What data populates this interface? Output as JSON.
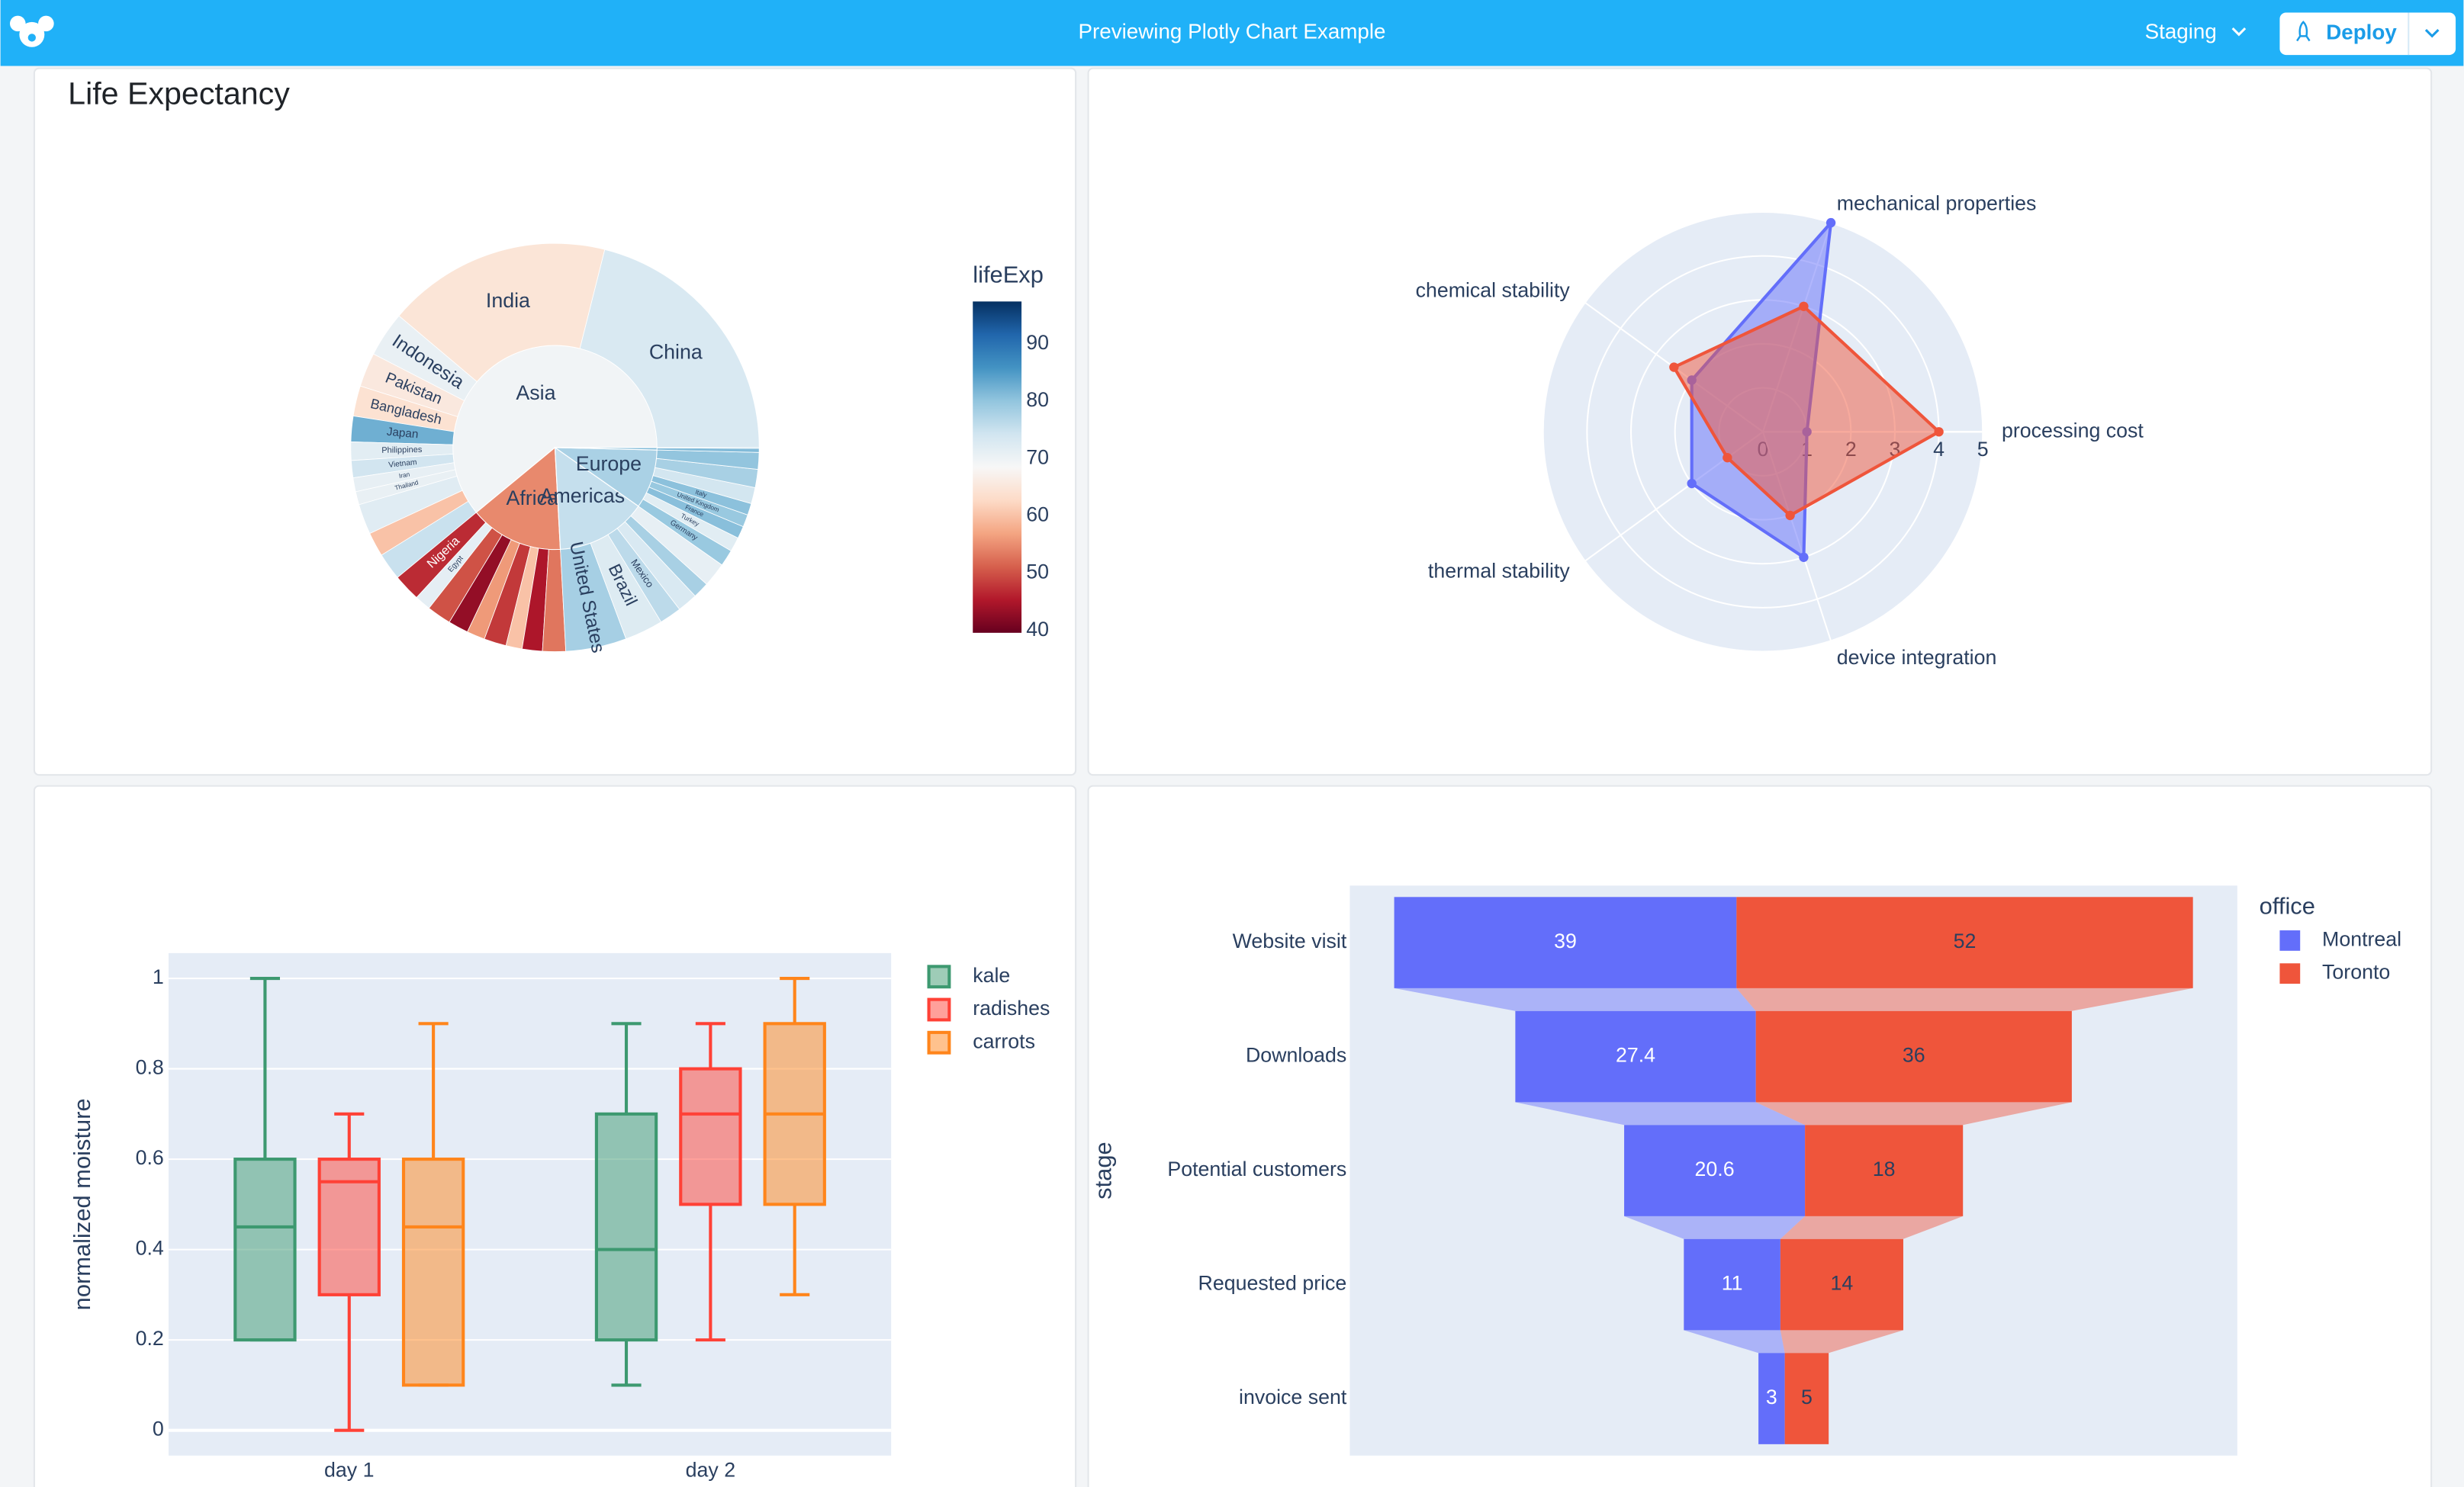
{
  "header": {
    "title": "Previewing Plotly Chart Example",
    "environment": "Staging",
    "action": "Deploy"
  },
  "chart_data": [
    {
      "type": "sunburst",
      "title": "Life Expectancy",
      "colorbar_title": "lifeExp",
      "clim": [
        39.6,
        97.4
      ],
      "cticks": [
        40,
        50,
        60,
        70,
        80,
        90
      ],
      "colorscale": [
        "#67001f",
        "#b2182b",
        "#d6604d",
        "#f4a582",
        "#fddbc7",
        "#f7f7f7",
        "#d1e5f0",
        "#92c5de",
        "#4393c3",
        "#2166ac",
        "#053061"
      ],
      "groups": [
        {
          "label": "Asia",
          "color_value": 69.4,
          "children": [
            {
              "label": "China",
              "value": 1318,
              "color_value": 73
            },
            {
              "label": "India",
              "value": 1110,
              "color_value": 64.7
            },
            {
              "label": "Indonesia",
              "value": 224,
              "color_value": 70.7
            },
            {
              "label": "Pakistan",
              "value": 169,
              "color_value": 65.5
            },
            {
              "label": "Bangladesh",
              "value": 150,
              "color_value": 64.1
            },
            {
              "label": "Japan",
              "value": 127,
              "color_value": 82.6
            },
            {
              "label": "Philippines",
              "value": 91,
              "color_value": 71.7
            },
            {
              "label": "Vietnam",
              "value": 85,
              "color_value": 74.2
            },
            {
              "label": "Iran",
              "value": 69,
              "color_value": 71
            },
            {
              "label": "Thailand",
              "value": 65,
              "color_value": 70.6
            },
            {
              "label": null,
              "value": 150,
              "color_value": 72
            },
            {
              "label": null,
              "value": 120,
              "color_value": 60
            },
            {
              "label": null,
              "value": 134,
              "color_value": 75
            }
          ]
        },
        {
          "label": "Africa",
          "color_value": 54.6,
          "children": [
            {
              "label": "Nigeria",
              "value": 135,
              "color_value": 46.9
            },
            {
              "label": "Egypt",
              "value": 80,
              "color_value": 71.3
            },
            {
              "label": null,
              "value": 120,
              "color_value": 50
            },
            {
              "label": null,
              "value": 100,
              "color_value": 43
            },
            {
              "label": null,
              "value": 90,
              "color_value": 56
            },
            {
              "label": null,
              "value": 110,
              "color_value": 48
            },
            {
              "label": null,
              "value": 80,
              "color_value": 60
            },
            {
              "label": null,
              "value": 100,
              "color_value": 45
            },
            {
              "label": null,
              "value": 114,
              "color_value": 53
            }
          ]
        },
        {
          "label": "Americas",
          "color_value": 75.4,
          "children": [
            {
              "label": "United States",
              "value": 301,
              "color_value": 78.2
            },
            {
              "label": "Brazil",
              "value": 190,
              "color_value": 72.4
            },
            {
              "label": "Mexico",
              "value": 109,
              "color_value": 76.2
            },
            {
              "label": null,
              "value": 100,
              "color_value": 73
            },
            {
              "label": null,
              "value": 80,
              "color_value": 78
            },
            {
              "label": null,
              "value": 120,
              "color_value": 71
            }
          ]
        },
        {
          "label": "Europe",
          "color_value": 77.9,
          "children": [
            {
              "label": "Germany",
              "value": 82,
              "color_value": 79.4
            },
            {
              "label": "Turkey",
              "value": 71,
              "color_value": 71.8
            },
            {
              "label": "France",
              "value": 61,
              "color_value": 80.7
            },
            {
              "label": "United Kingdom",
              "value": 61,
              "color_value": 79.4
            },
            {
              "label": "Italy",
              "value": 58,
              "color_value": 80.5
            },
            {
              "label": null,
              "value": 80,
              "color_value": 74
            },
            {
              "label": null,
              "value": 90,
              "color_value": 78
            },
            {
              "label": null,
              "value": 83,
              "color_value": 80
            }
          ]
        },
        {
          "label": null,
          "color_value": 81,
          "children": [
            {
              "label": null,
              "value": 20,
              "color_value": 81.2
            },
            {
              "label": null,
              "value": 4,
              "color_value": 80.2
            }
          ]
        }
      ]
    },
    {
      "type": "radar",
      "categories": [
        "processing cost",
        "mechanical properties",
        "chemical stability",
        "thermal stability",
        "device integration"
      ],
      "rlim": [
        0,
        5
      ],
      "rticks": [
        0,
        1,
        2,
        3,
        4,
        5
      ],
      "series": [
        {
          "color": "#636efa",
          "values": [
            1,
            5,
            2,
            2,
            3
          ]
        },
        {
          "color": "#ef553b",
          "values": [
            4,
            3,
            2.5,
            1,
            2
          ]
        }
      ]
    },
    {
      "type": "box",
      "categories": [
        "day 1",
        "day 2"
      ],
      "ylabel": "normalized moisture",
      "ylim": [
        -0.056,
        1.056
      ],
      "yticks": [
        0,
        0.2,
        0.4,
        0.6,
        0.8,
        1
      ],
      "grid": true,
      "legend": "right",
      "series": [
        {
          "name": "kale",
          "color": "#3d9970",
          "min": [
            0.2,
            0.1
          ],
          "q1": [
            0.2,
            0.2
          ],
          "median": [
            0.45,
            0.4
          ],
          "q3": [
            0.6,
            0.7
          ],
          "max": [
            1,
            0.9
          ]
        },
        {
          "name": "radishes",
          "color": "#ff4136",
          "min": [
            0,
            0.2
          ],
          "q1": [
            0.3,
            0.5
          ],
          "median": [
            0.55,
            0.7
          ],
          "q3": [
            0.6,
            0.8
          ],
          "max": [
            0.7,
            0.9
          ]
        },
        {
          "name": "carrots",
          "color": "#ff851b",
          "min": [
            0.1,
            0.3
          ],
          "q1": [
            0.1,
            0.5
          ],
          "median": [
            0.45,
            0.7
          ],
          "q3": [
            0.6,
            0.9
          ],
          "max": [
            0.9,
            1
          ]
        }
      ]
    },
    {
      "type": "funnel",
      "categories": [
        "Website visit",
        "Downloads",
        "Potential customers",
        "Requested price",
        "invoice sent"
      ],
      "ylabel": "stage",
      "legend_title": "office",
      "legend": "right",
      "series": [
        {
          "name": "Montreal",
          "color": "#636efa",
          "label_color": "#ffffff",
          "values": [
            39,
            27.4,
            20.6,
            11,
            3
          ]
        },
        {
          "name": "Toronto",
          "color": "#ef553b",
          "label_color": "#2a3f5f",
          "values": [
            52,
            36,
            18,
            14,
            5
          ]
        }
      ]
    }
  ]
}
